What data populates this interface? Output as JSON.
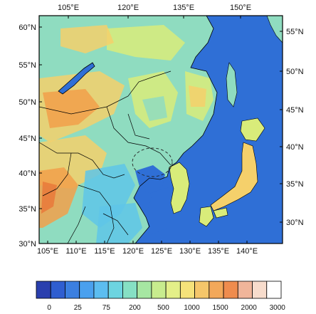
{
  "map": {
    "top_axis_labels": [
      "105°E",
      "120°E",
      "135°E",
      "150°E"
    ],
    "bottom_axis_labels": [
      "105°E",
      "110°E",
      "115°E",
      "120°E",
      "125°E",
      "130°E",
      "135°E",
      "140°E"
    ],
    "left_axis_labels": [
      "60°N",
      "55°N",
      "50°N",
      "45°N",
      "40°N",
      "35°N",
      "30°N"
    ],
    "right_axis_labels": [
      "55°N",
      "50°N",
      "45°N",
      "40°N",
      "35°N",
      "30°N"
    ],
    "ocean_color": "#2f6fd6",
    "land_colors": {
      "lowland": "#5fc6e8",
      "plain": "#8fdcc0",
      "hill": "#d9ec7a",
      "upland": "#f5d06b",
      "mountain": "#f2a04a",
      "high_mountain": "#e9793a"
    }
  },
  "colorbar": {
    "labels": [
      "0",
      "25",
      "75",
      "200",
      "500",
      "1000",
      "1500",
      "2000",
      "3000"
    ],
    "colors": [
      "#2a3fae",
      "#2f5ed0",
      "#3b7fe0",
      "#4aa0ee",
      "#5cbdf0",
      "#6dd4e0",
      "#86e0c4",
      "#a6e6a2",
      "#c8ec8e",
      "#e4ef88",
      "#f5e27a",
      "#f5c66a",
      "#f2a85a",
      "#ef8c4e",
      "#f0b59a",
      "#f7dccc",
      "#ffffff"
    ]
  }
}
